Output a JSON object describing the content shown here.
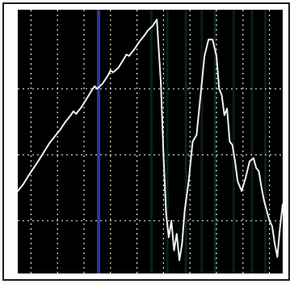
{
  "chart_data": {
    "type": "line",
    "title": "",
    "xlabel": "",
    "ylabel": "",
    "grid": true,
    "grid_style": "dotted",
    "background": "#000000",
    "line_color": "#f2f2f2",
    "grid_color": "#e6e6e6",
    "marker_color": "#2a3fb8",
    "xlim": [
      0,
      10
    ],
    "ylim": [
      0,
      4
    ],
    "x_gridlines": [
      0.5,
      1.5,
      2.5,
      3.5,
      4.5,
      5.5,
      6.5,
      7.5,
      8.5,
      9.5
    ],
    "y_gridlines": [
      0.8,
      1.8,
      2.8
    ],
    "marker_x": 3.05,
    "series": [
      {
        "x": [
          0.0,
          0.2,
          0.4,
          0.6,
          0.8,
          1.0,
          1.2,
          1.4,
          1.6,
          1.8,
          2.0,
          2.1,
          2.2,
          2.4,
          2.6,
          2.8,
          2.9,
          3.0,
          3.2,
          3.4,
          3.5,
          3.6,
          3.8,
          4.0,
          4.1,
          4.2,
          4.4,
          4.6,
          4.8,
          4.9,
          5.0,
          5.1,
          5.25,
          5.4,
          5.5,
          5.6,
          5.7,
          5.8,
          5.9,
          6.0,
          6.1,
          6.2,
          6.3,
          6.45,
          6.6,
          6.75,
          6.9,
          7.05,
          7.2,
          7.35,
          7.5,
          7.6,
          7.7,
          7.8,
          7.9,
          8.0,
          8.1,
          8.2,
          8.3,
          8.45,
          8.6,
          8.75,
          8.9,
          9.0,
          9.1,
          9.2,
          9.3,
          9.4,
          9.5,
          9.6,
          9.7,
          9.8,
          9.9,
          10.0
        ],
        "values": [
          1.25,
          1.35,
          1.48,
          1.6,
          1.72,
          1.85,
          1.98,
          2.08,
          2.18,
          2.3,
          2.4,
          2.46,
          2.42,
          2.52,
          2.65,
          2.78,
          2.84,
          2.8,
          2.88,
          3.0,
          3.08,
          3.05,
          3.12,
          3.25,
          3.32,
          3.3,
          3.4,
          3.52,
          3.62,
          3.68,
          3.72,
          3.76,
          3.85,
          2.9,
          1.8,
          0.9,
          0.55,
          0.8,
          0.35,
          0.6,
          0.2,
          0.45,
          0.95,
          1.4,
          2.0,
          2.1,
          2.7,
          3.3,
          3.55,
          3.55,
          3.3,
          2.8,
          2.7,
          2.4,
          2.5,
          2.0,
          1.95,
          1.7,
          1.4,
          1.25,
          1.45,
          1.7,
          1.75,
          1.6,
          1.55,
          1.3,
          1.1,
          0.95,
          0.8,
          0.72,
          0.45,
          0.25,
          0.7,
          1.05
        ]
      }
    ]
  }
}
